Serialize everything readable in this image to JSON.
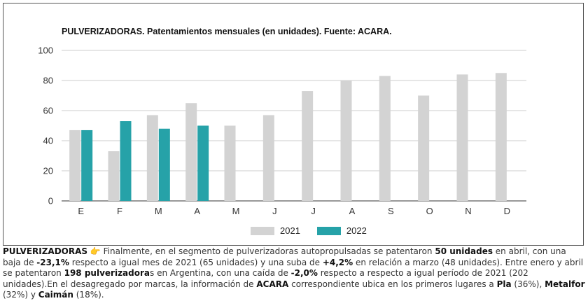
{
  "chart_data": {
    "type": "bar",
    "title": "PULVERIZADORAS. Patentamientos mensuales (en unidades). Fuente: ACARA.",
    "categories": [
      "E",
      "F",
      "M",
      "A",
      "M",
      "J",
      "J",
      "A",
      "S",
      "O",
      "N",
      "D"
    ],
    "series": [
      {
        "name": "2021",
        "color": "#d3d3d3",
        "values": [
          47,
          33,
          57,
          65,
          50,
          57,
          73,
          80,
          83,
          70,
          84,
          85
        ]
      },
      {
        "name": "2022",
        "color": "#26a2a8",
        "values": [
          47,
          53,
          48,
          50,
          null,
          null,
          null,
          null,
          null,
          null,
          null,
          null
        ]
      }
    ],
    "ylim": [
      0,
      100
    ],
    "yticks": [
      0,
      20,
      40,
      60,
      80,
      100
    ],
    "grid": true,
    "legend_position": "bottom"
  },
  "caption": {
    "p1": "PULVERIZADORAS",
    "icon": "pointing-hand-icon",
    "p2": " Finalmente, en el segmento de pulverizadoras autopropulsadas se patentaron ",
    "p3": "50 unidades",
    "p4": " en abril, con una baja de ",
    "p5": "-23,1%",
    "p6": " respecto a igual mes de 2021 (65 unidades) y una suba de ",
    "p7": "+4,2%",
    "p8": " en relación a marzo (48 unidades). Entre enero y abril se patentaron ",
    "p9": "198 pulverizadora",
    "p10": "s en Argentina, con una caída de ",
    "p11": "-2,0%",
    "p12": " respecto a respecto a igual período de 2021 (202 unidades).En el desagregado por marcas, la información de ",
    "p13": "ACARA",
    "p14": " correspondiente ubica en los primeros lugares a ",
    "p15": "Pla",
    "p16": " (36%), ",
    "p17": "Metalfor",
    "p18": " (32%) y ",
    "p19": "Caimán",
    "p20": " (18%)."
  }
}
